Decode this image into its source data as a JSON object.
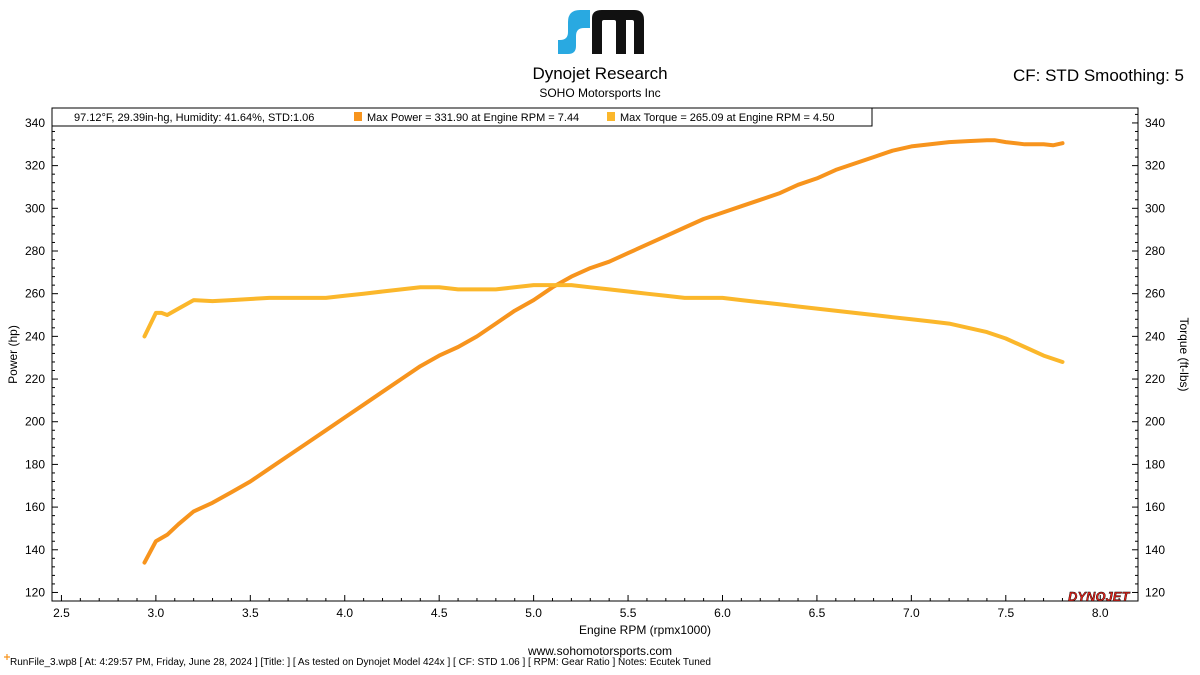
{
  "header": {
    "company": "Dynojet Research",
    "subtitle": "SOHO Motorsports Inc",
    "cf_text": "CF: STD Smoothing: 5"
  },
  "legend": {
    "conditions": "97.12°F, 29.39in-hg, Humidity: 41.64%, STD:1.06",
    "power": "Max Power = 331.90 at Engine RPM = 7.44",
    "torque": "Max Torque = 265.09 at Engine RPM = 4.50"
  },
  "brand_mark": "DYNOJET",
  "website": "www.sohomotorsports.com",
  "footer": "RunFile_3.wp8 [ At: 4:29:57 PM, Friday, June 28, 2024 ] [Title: ] [ As tested on Dynojet Model 424x ] [ CF: STD 1.06 ] [ RPM: Gear Ratio ] Notes: Ecutek Tuned",
  "colors": {
    "power": "#f7941d",
    "torque": "#fbb72b",
    "logo_blue": "#29a9e1",
    "brand_red": "#e2231a"
  },
  "chart_data": {
    "type": "line",
    "title": "",
    "xlabel": "Engine RPM (rpmx1000)",
    "ylabel": "Power (hp)",
    "y2label": "Torque (ft-lbs)",
    "xlim": [
      2.45,
      8.2
    ],
    "ylim": [
      116,
      347
    ],
    "xticks": [
      2.5,
      3.0,
      3.5,
      4.0,
      4.5,
      5.0,
      5.5,
      6.0,
      6.5,
      7.0,
      7.5,
      8.0
    ],
    "xtick_labels": [
      "2.5",
      "3.0",
      "3.5",
      "4.0",
      "4.5",
      "5.0",
      "5.5",
      "6.0",
      "6.5",
      "7.0",
      "7.5",
      "8.0"
    ],
    "yticks": [
      120,
      140,
      160,
      180,
      200,
      220,
      240,
      260,
      280,
      300,
      320,
      340
    ],
    "ytick_labels": [
      "120",
      "140",
      "160",
      "180",
      "200",
      "220",
      "240",
      "260",
      "280",
      "300",
      "320",
      "340"
    ],
    "grid": false,
    "series": [
      {
        "name": "Power",
        "color": "#f7941d",
        "x": [
          2.94,
          3.0,
          3.06,
          3.12,
          3.2,
          3.3,
          3.4,
          3.5,
          3.6,
          3.7,
          3.8,
          3.9,
          4.0,
          4.1,
          4.2,
          4.3,
          4.4,
          4.5,
          4.6,
          4.7,
          4.8,
          4.9,
          5.0,
          5.1,
          5.2,
          5.3,
          5.4,
          5.5,
          5.6,
          5.7,
          5.8,
          5.9,
          6.0,
          6.1,
          6.2,
          6.3,
          6.4,
          6.5,
          6.6,
          6.7,
          6.8,
          6.9,
          7.0,
          7.1,
          7.2,
          7.3,
          7.4,
          7.44,
          7.5,
          7.6,
          7.7,
          7.75,
          7.8
        ],
        "values": [
          134,
          144,
          147,
          152,
          158,
          162,
          167,
          172,
          178,
          184,
          190,
          196,
          202,
          208,
          214,
          220,
          226,
          231,
          235,
          240,
          246,
          252,
          257,
          263,
          268,
          272,
          275,
          279,
          283,
          287,
          291,
          295,
          298,
          301,
          304,
          307,
          311,
          314,
          318,
          321,
          324,
          327,
          329,
          330,
          331,
          331.5,
          331.9,
          331.9,
          331,
          330,
          330,
          329.5,
          330.5
        ]
      },
      {
        "name": "Torque",
        "color": "#fbb72b",
        "x": [
          2.94,
          3.0,
          3.03,
          3.06,
          3.12,
          3.2,
          3.3,
          3.4,
          3.5,
          3.6,
          3.7,
          3.8,
          3.9,
          4.0,
          4.1,
          4.2,
          4.3,
          4.4,
          4.5,
          4.6,
          4.7,
          4.8,
          4.9,
          5.0,
          5.1,
          5.2,
          5.3,
          5.4,
          5.5,
          5.6,
          5.7,
          5.8,
          5.9,
          6.0,
          6.1,
          6.2,
          6.3,
          6.4,
          6.5,
          6.6,
          6.7,
          6.8,
          6.9,
          7.0,
          7.1,
          7.2,
          7.3,
          7.4,
          7.5,
          7.6,
          7.7,
          7.8
        ],
        "values": [
          240,
          251,
          251,
          250,
          253,
          257,
          256.5,
          257,
          257.5,
          258,
          258,
          258,
          258,
          259,
          260,
          261,
          262,
          263,
          263,
          262,
          262,
          262,
          263,
          264,
          264,
          264,
          263,
          262,
          261,
          260,
          259,
          258,
          258,
          258,
          257,
          256,
          255,
          254,
          253,
          252,
          251,
          250,
          249,
          248,
          247,
          246,
          244,
          242,
          239,
          235,
          231,
          228
        ]
      }
    ]
  }
}
